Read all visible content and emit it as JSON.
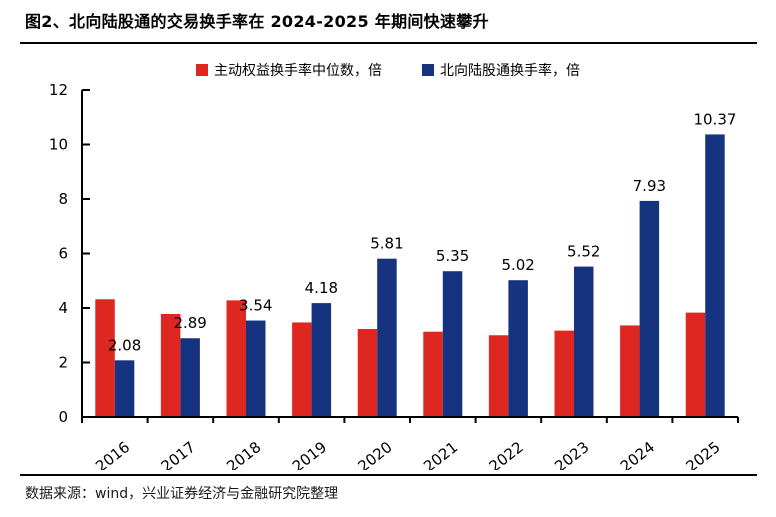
{
  "title": "图2、北向陆股通的交易换手率在 2024-2025 年期间快速攀升",
  "legend": {
    "items": [
      {
        "label": "主动权益换手率中位数，倍",
        "color": "#df2722"
      },
      {
        "label": "北向陆股通换手率，倍",
        "color": "#16337f"
      }
    ]
  },
  "footer": {
    "source_text": "数据来源：wind，兴业证券经济与金融研究院整理"
  },
  "colors": {
    "red_series": "#df2722",
    "blue_series": "#16337f",
    "axis": "#000000",
    "text": "#000000",
    "background": "#ffffff"
  },
  "chart_data": {
    "type": "bar",
    "categories": [
      "2016",
      "2017",
      "2018",
      "2019",
      "2020",
      "2021",
      "2022",
      "2023",
      "2024",
      "2025"
    ],
    "series": [
      {
        "name": "主动权益换手率中位数，倍",
        "color": "#df2722",
        "data_labels": false,
        "values": [
          4.32,
          3.78,
          4.28,
          3.47,
          3.23,
          3.13,
          3.0,
          3.17,
          3.36,
          3.83
        ]
      },
      {
        "name": "北向陆股通换手率，倍",
        "color": "#16337f",
        "data_labels": true,
        "values": [
          2.08,
          2.89,
          3.54,
          4.18,
          5.81,
          5.35,
          5.02,
          5.52,
          7.93,
          10.37
        ]
      }
    ],
    "ylim": [
      0,
      12
    ],
    "yticks": [
      0,
      2,
      4,
      6,
      8,
      10,
      12
    ],
    "grid": false,
    "legend_position": "top",
    "x_label_rotation_deg": -38
  }
}
